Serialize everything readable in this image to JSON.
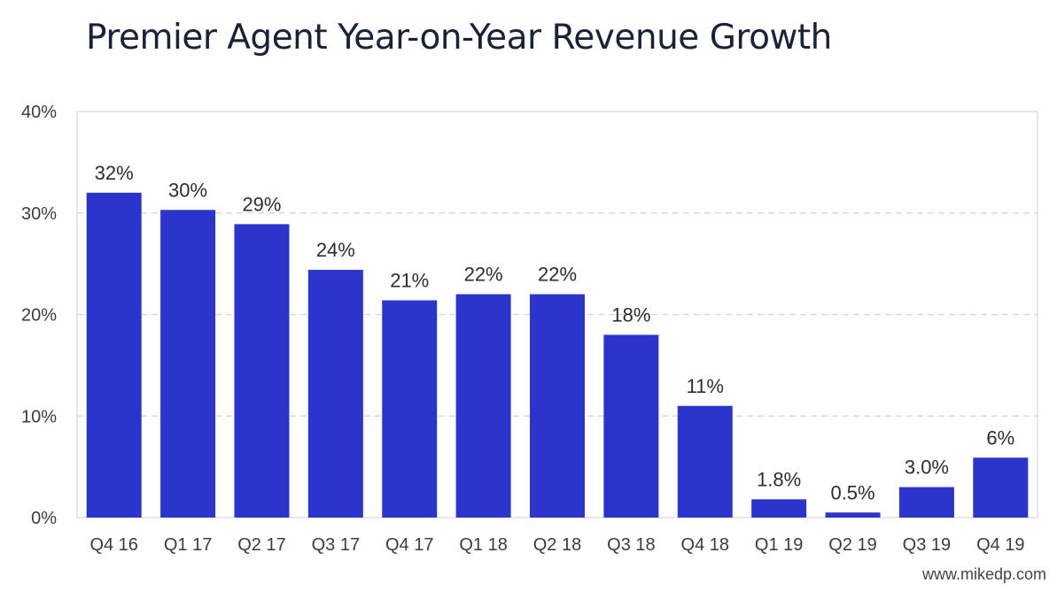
{
  "chart_data": {
    "type": "bar",
    "title": "Premier Agent Year-on-Year Revenue Growth",
    "xlabel": "",
    "ylabel": "",
    "categories": [
      "Q4 16",
      "Q1 17",
      "Q2 17",
      "Q3 17",
      "Q4 17",
      "Q1 18",
      "Q2 18",
      "Q3 18",
      "Q4 18",
      "Q1 19",
      "Q2 19",
      "Q3 19",
      "Q4 19"
    ],
    "values": [
      32,
      30.3,
      28.9,
      24.4,
      21.4,
      22,
      22,
      18,
      11,
      1.8,
      0.5,
      3.0,
      5.9
    ],
    "data_labels": [
      "32%",
      "30%",
      "29%",
      "24%",
      "21%",
      "22%",
      "22%",
      "18%",
      "11%",
      "1.8%",
      "0.5%",
      "3.0%",
      "6%"
    ],
    "ylim": [
      0,
      40
    ],
    "yticks": [
      0,
      10,
      20,
      30,
      40
    ],
    "ytick_labels": [
      "0%",
      "10%",
      "20%",
      "30%",
      "40%"
    ],
    "grid": "horizontal dashed",
    "bar_color": "#2b35c9"
  },
  "watermark": "www.mikedp.com"
}
